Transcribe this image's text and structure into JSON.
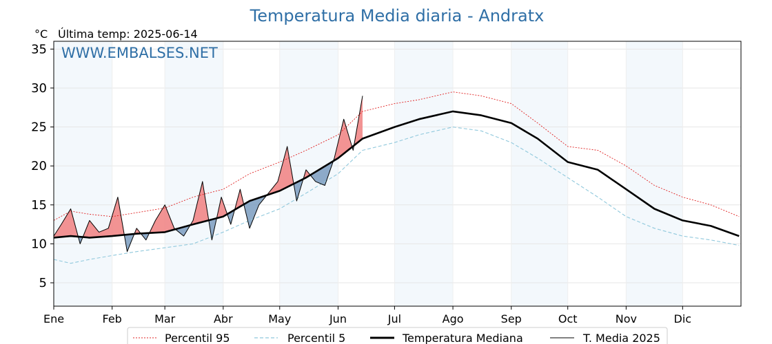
{
  "chart_data": {
    "type": "line",
    "title": "Temperatura Media diaria - Andratx",
    "unit": "°C",
    "last_temp_label": "Última temp: 2025-06-14",
    "watermark": "WWW.EMBALSES.NET",
    "ylim": [
      2,
      36
    ],
    "yticks": [
      5,
      10,
      15,
      20,
      25,
      30,
      35
    ],
    "months": [
      "Ene",
      "Feb",
      "Mar",
      "Abr",
      "May",
      "Jun",
      "Jul",
      "Ago",
      "Sep",
      "Oct",
      "Nov",
      "Dic"
    ],
    "month_start_days": [
      1,
      32,
      60,
      91,
      121,
      152,
      182,
      213,
      244,
      274,
      305,
      335
    ],
    "days_in_year": 365,
    "colors": {
      "p95": "#e02020",
      "p5": "#8fc8dc",
      "median": "#000000",
      "current": "#000000",
      "above_fill": "#f08080",
      "below_fill": "#7a9cc0",
      "band_shade": "#f3f8fc",
      "title": "#2f6fa6"
    },
    "legend": {
      "p95": "Percentil 95",
      "p5": "Percentil 5",
      "median": "Temperatura Mediana",
      "current": "T. Media 2025"
    },
    "series": {
      "p95": {
        "x": [
          1,
          10,
          20,
          32,
          45,
          60,
          75,
          91,
          105,
          121,
          135,
          152,
          165,
          182,
          195,
          213,
          228,
          244,
          258,
          274,
          290,
          305,
          320,
          335,
          350,
          365
        ],
        "y": [
          13.0,
          14.2,
          13.8,
          13.5,
          14.0,
          14.6,
          16.0,
          17.0,
          19.0,
          20.5,
          22.0,
          24.0,
          27.0,
          28.0,
          28.5,
          29.5,
          29.0,
          28.0,
          25.5,
          22.5,
          22.0,
          20.0,
          17.5,
          16.0,
          15.0,
          13.5
        ]
      },
      "p5": {
        "x": [
          1,
          10,
          20,
          32,
          45,
          60,
          75,
          91,
          105,
          121,
          135,
          152,
          165,
          182,
          195,
          213,
          228,
          244,
          258,
          274,
          290,
          305,
          320,
          335,
          350,
          365
        ],
        "y": [
          8.0,
          7.5,
          8.0,
          8.5,
          9.0,
          9.5,
          10.0,
          11.5,
          13.0,
          14.5,
          16.5,
          19.0,
          22.0,
          23.0,
          24.0,
          25.0,
          24.5,
          23.0,
          21.0,
          18.5,
          16.0,
          13.5,
          12.0,
          11.0,
          10.5,
          9.8
        ]
      },
      "median": {
        "x": [
          1,
          10,
          20,
          32,
          45,
          60,
          75,
          91,
          105,
          121,
          135,
          152,
          165,
          182,
          195,
          213,
          228,
          244,
          258,
          274,
          290,
          305,
          320,
          335,
          350,
          365
        ],
        "y": [
          10.8,
          11.0,
          10.8,
          11.0,
          11.3,
          11.5,
          12.5,
          13.5,
          15.5,
          16.8,
          18.5,
          21.0,
          23.5,
          25.0,
          26.0,
          27.0,
          26.5,
          25.5,
          23.5,
          20.5,
          19.5,
          17.0,
          14.5,
          13.0,
          12.3,
          11.0
        ]
      },
      "current": {
        "x": [
          1,
          5,
          10,
          15,
          20,
          25,
          30,
          35,
          40,
          45,
          50,
          55,
          60,
          65,
          70,
          75,
          80,
          85,
          90,
          95,
          100,
          105,
          110,
          115,
          120,
          125,
          130,
          135,
          140,
          145,
          150,
          155,
          160,
          165
        ],
        "y": [
          11.0,
          12.5,
          14.5,
          10.0,
          13.0,
          11.5,
          12.0,
          16.0,
          9.0,
          12.0,
          10.5,
          13.0,
          15.0,
          12.0,
          11.0,
          13.0,
          18.0,
          10.5,
          16.0,
          12.5,
          17.0,
          12.0,
          15.0,
          16.5,
          18.0,
          22.5,
          15.5,
          19.5,
          18.0,
          17.5,
          21.0,
          26.0,
          22.0,
          29.0
        ]
      }
    }
  }
}
